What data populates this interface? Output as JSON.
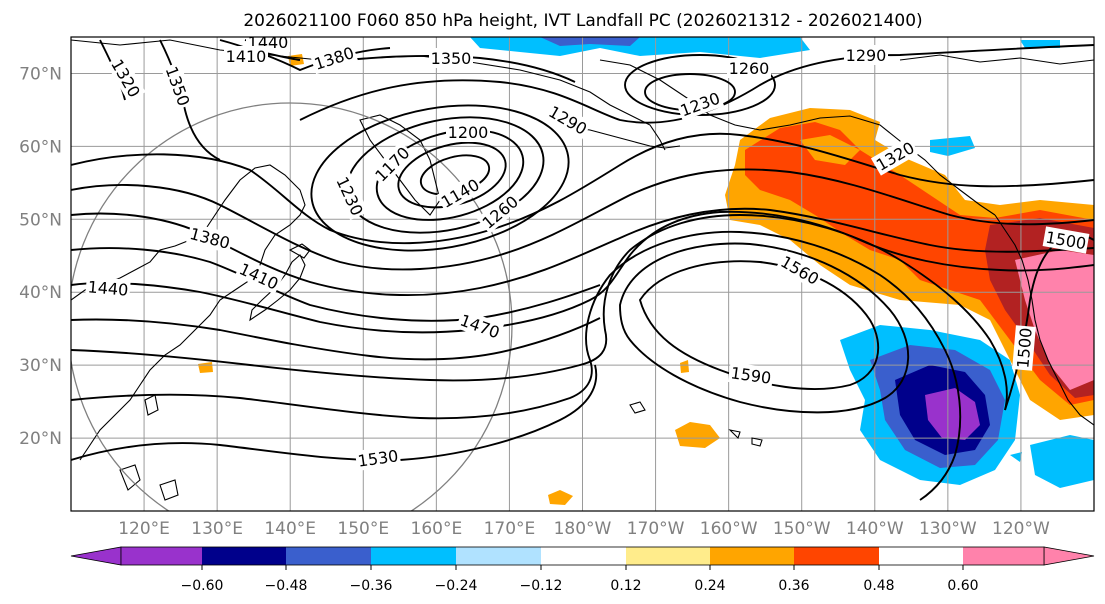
{
  "title": "2026021100 F060 850 hPa height, IVT Landfall PC (2026021312 - 2026021400)",
  "lat_labels": [
    "70°N",
    "60°N",
    "50°N",
    "40°N",
    "30°N",
    "20°N"
  ],
  "lon_labels": [
    "120°E",
    "130°E",
    "140°E",
    "150°E",
    "160°E",
    "170°E",
    "180°W",
    "170°W",
    "160°W",
    "150°W",
    "140°W",
    "130°W",
    "120°W"
  ],
  "colorbar": {
    "colors": [
      "#9932cc",
      "#00008b",
      "#3a5fcd",
      "#00bfff",
      "#b0e2ff",
      "#ffffff",
      "#ffec8b",
      "#ffa500",
      "#ff4500",
      "#b22222",
      "#ff82ab"
    ],
    "tick_labels": [
      "−0.60",
      "−0.48",
      "−0.36",
      "−0.24",
      "−0.12",
      "0.12",
      "0.24",
      "0.36",
      "0.48",
      "0.60"
    ]
  },
  "contour_labels": [
    "1440",
    "1410",
    "1380",
    "1350",
    "1320",
    "1350",
    "1290",
    "1260",
    "1230",
    "1290",
    "1200",
    "1170",
    "1140",
    "1230",
    "1260",
    "1320",
    "1380",
    "1410",
    "1440",
    "1470",
    "1560",
    "1500",
    "1590",
    "1500",
    "1530"
  ],
  "map": {
    "projection": "PlateCarree",
    "lon_range": [
      110,
      250
    ],
    "lat_range": [
      10,
      75
    ]
  }
}
